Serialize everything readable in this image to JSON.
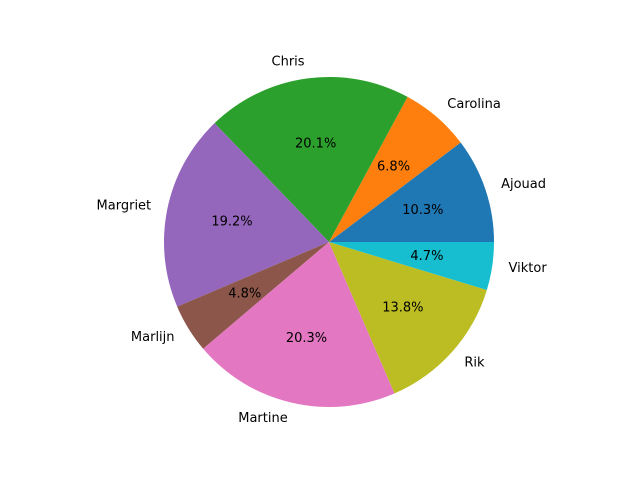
{
  "chart_data": {
    "type": "pie",
    "start_angle_deg": 0,
    "direction": "counterclockwise",
    "slices": [
      {
        "label": "Ajouad",
        "value": 10.3,
        "pct_label": "10.3%",
        "color": "#1f77b4"
      },
      {
        "label": "Carolina",
        "value": 6.8,
        "pct_label": "6.8%",
        "color": "#ff7f0e"
      },
      {
        "label": "Chris",
        "value": 20.1,
        "pct_label": "20.1%",
        "color": "#2ca02c"
      },
      {
        "label": "Margriet",
        "value": 19.2,
        "pct_label": "19.2%",
        "color": "#9467bd"
      },
      {
        "label": "Marlijn",
        "value": 4.8,
        "pct_label": "4.8%",
        "color": "#8c564b"
      },
      {
        "label": "Martine",
        "value": 20.3,
        "pct_label": "20.3%",
        "color": "#e377c2"
      },
      {
        "label": "Rik",
        "value": 13.8,
        "pct_label": "13.8%",
        "color": "#bcbd22"
      },
      {
        "label": "Viktor",
        "value": 4.7,
        "pct_label": "4.7%",
        "color": "#17becf"
      }
    ]
  }
}
